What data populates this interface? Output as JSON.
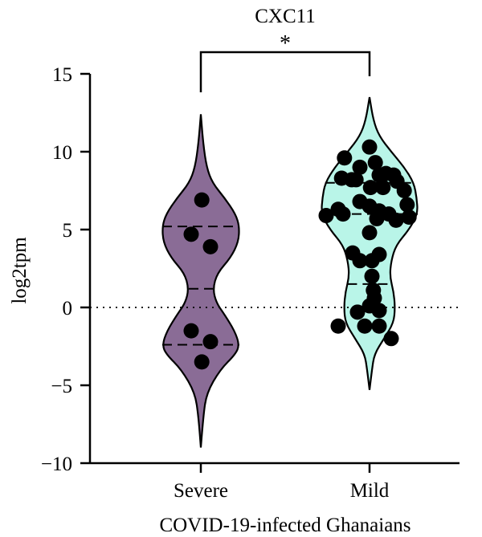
{
  "chart_data": {
    "type": "violin",
    "title": "CXC11",
    "xlabel": "COVID-19-infected Ghanaians",
    "ylabel": "log2tpm",
    "ylim": [
      -10,
      15
    ],
    "yticks": [
      15,
      10,
      5,
      0,
      -5,
      -10
    ],
    "ytick_labels": [
      "15",
      "10",
      "5",
      "0",
      "−5",
      "−10"
    ],
    "categories": [
      "Severe",
      "Mild"
    ],
    "significance": {
      "label": "*",
      "between": [
        "Severe",
        "Mild"
      ]
    },
    "reference_line": {
      "y": 0,
      "style": "dotted"
    },
    "series": [
      {
        "category": "Severe",
        "color": "#8a6c96",
        "range": [
          -9.0,
          12.4
        ],
        "quartile_lines": [
          5.2,
          1.2,
          -2.4
        ],
        "profile": [
          [
            -9.0,
            0
          ],
          [
            -7.0,
            0.05
          ],
          [
            -5.5,
            0.12
          ],
          [
            -4.0,
            0.4
          ],
          [
            -3.0,
            0.72
          ],
          [
            -2.4,
            0.8
          ],
          [
            -1.5,
            0.7
          ],
          [
            -0.5,
            0.5
          ],
          [
            0.3,
            0.32
          ],
          [
            1.2,
            0.25
          ],
          [
            2.2,
            0.34
          ],
          [
            3.2,
            0.62
          ],
          [
            4.2,
            0.78
          ],
          [
            5.2,
            0.8
          ],
          [
            6.0,
            0.72
          ],
          [
            7.0,
            0.5
          ],
          [
            8.0,
            0.24
          ],
          [
            9.0,
            0.12
          ],
          [
            10.5,
            0.05
          ],
          [
            12.4,
            0
          ]
        ],
        "points": [
          6.9,
          4.7,
          3.9,
          -1.5,
          -2.2,
          -3.5
        ],
        "point_offsets": [
          0.02,
          -0.2,
          0.2,
          -0.2,
          0.2,
          0.02
        ]
      },
      {
        "category": "Mild",
        "color": "#b9f5e8",
        "range": [
          -5.3,
          13.5
        ],
        "quartile_lines": [
          8.0,
          6.0,
          1.5
        ],
        "profile": [
          [
            -5.3,
            0
          ],
          [
            -4.0,
            0.05
          ],
          [
            -3.0,
            0.1
          ],
          [
            -2.0,
            0.3
          ],
          [
            -1.0,
            0.5
          ],
          [
            0.0,
            0.53
          ],
          [
            1.0,
            0.5
          ],
          [
            2.0,
            0.42
          ],
          [
            3.0,
            0.45
          ],
          [
            4.0,
            0.55
          ],
          [
            5.0,
            0.82
          ],
          [
            6.0,
            1.0
          ],
          [
            7.0,
            0.98
          ],
          [
            8.0,
            0.92
          ],
          [
            9.0,
            0.72
          ],
          [
            10.0,
            0.45
          ],
          [
            11.0,
            0.2
          ],
          [
            12.0,
            0.08
          ],
          [
            13.5,
            0
          ]
        ],
        "points": [
          10.3,
          9.6,
          9.3,
          9.0,
          8.6,
          8.5,
          8.5,
          8.3,
          8.2,
          8.2,
          8.1,
          7.7,
          7.7,
          7.5,
          6.8,
          6.6,
          6.5,
          6.3,
          6.2,
          6.0,
          6.0,
          5.9,
          5.8,
          5.7,
          5.6,
          4.8,
          3.5,
          3.4,
          3.0,
          3.0,
          2.0,
          1.1,
          0.6,
          0.1,
          -0.2,
          -0.3,
          -1.2,
          -1.2,
          -1.2,
          -2.0
        ],
        "point_offsets": [
          0.0,
          -0.52,
          0.12,
          -0.2,
          0.34,
          0.5,
          0.2,
          -0.58,
          -0.37,
          -0.28,
          0.57,
          0.28,
          0.02,
          0.72,
          -0.2,
          0.78,
          0.0,
          -0.65,
          0.2,
          -0.55,
          0.4,
          -0.9,
          0.82,
          0.15,
          0.55,
          0.0,
          -0.35,
          0.2,
          0.05,
          -0.2,
          0.05,
          0.08,
          0.1,
          0.0,
          0.2,
          -0.25,
          -0.65,
          -0.1,
          0.2,
          0.45
        ]
      }
    ]
  }
}
